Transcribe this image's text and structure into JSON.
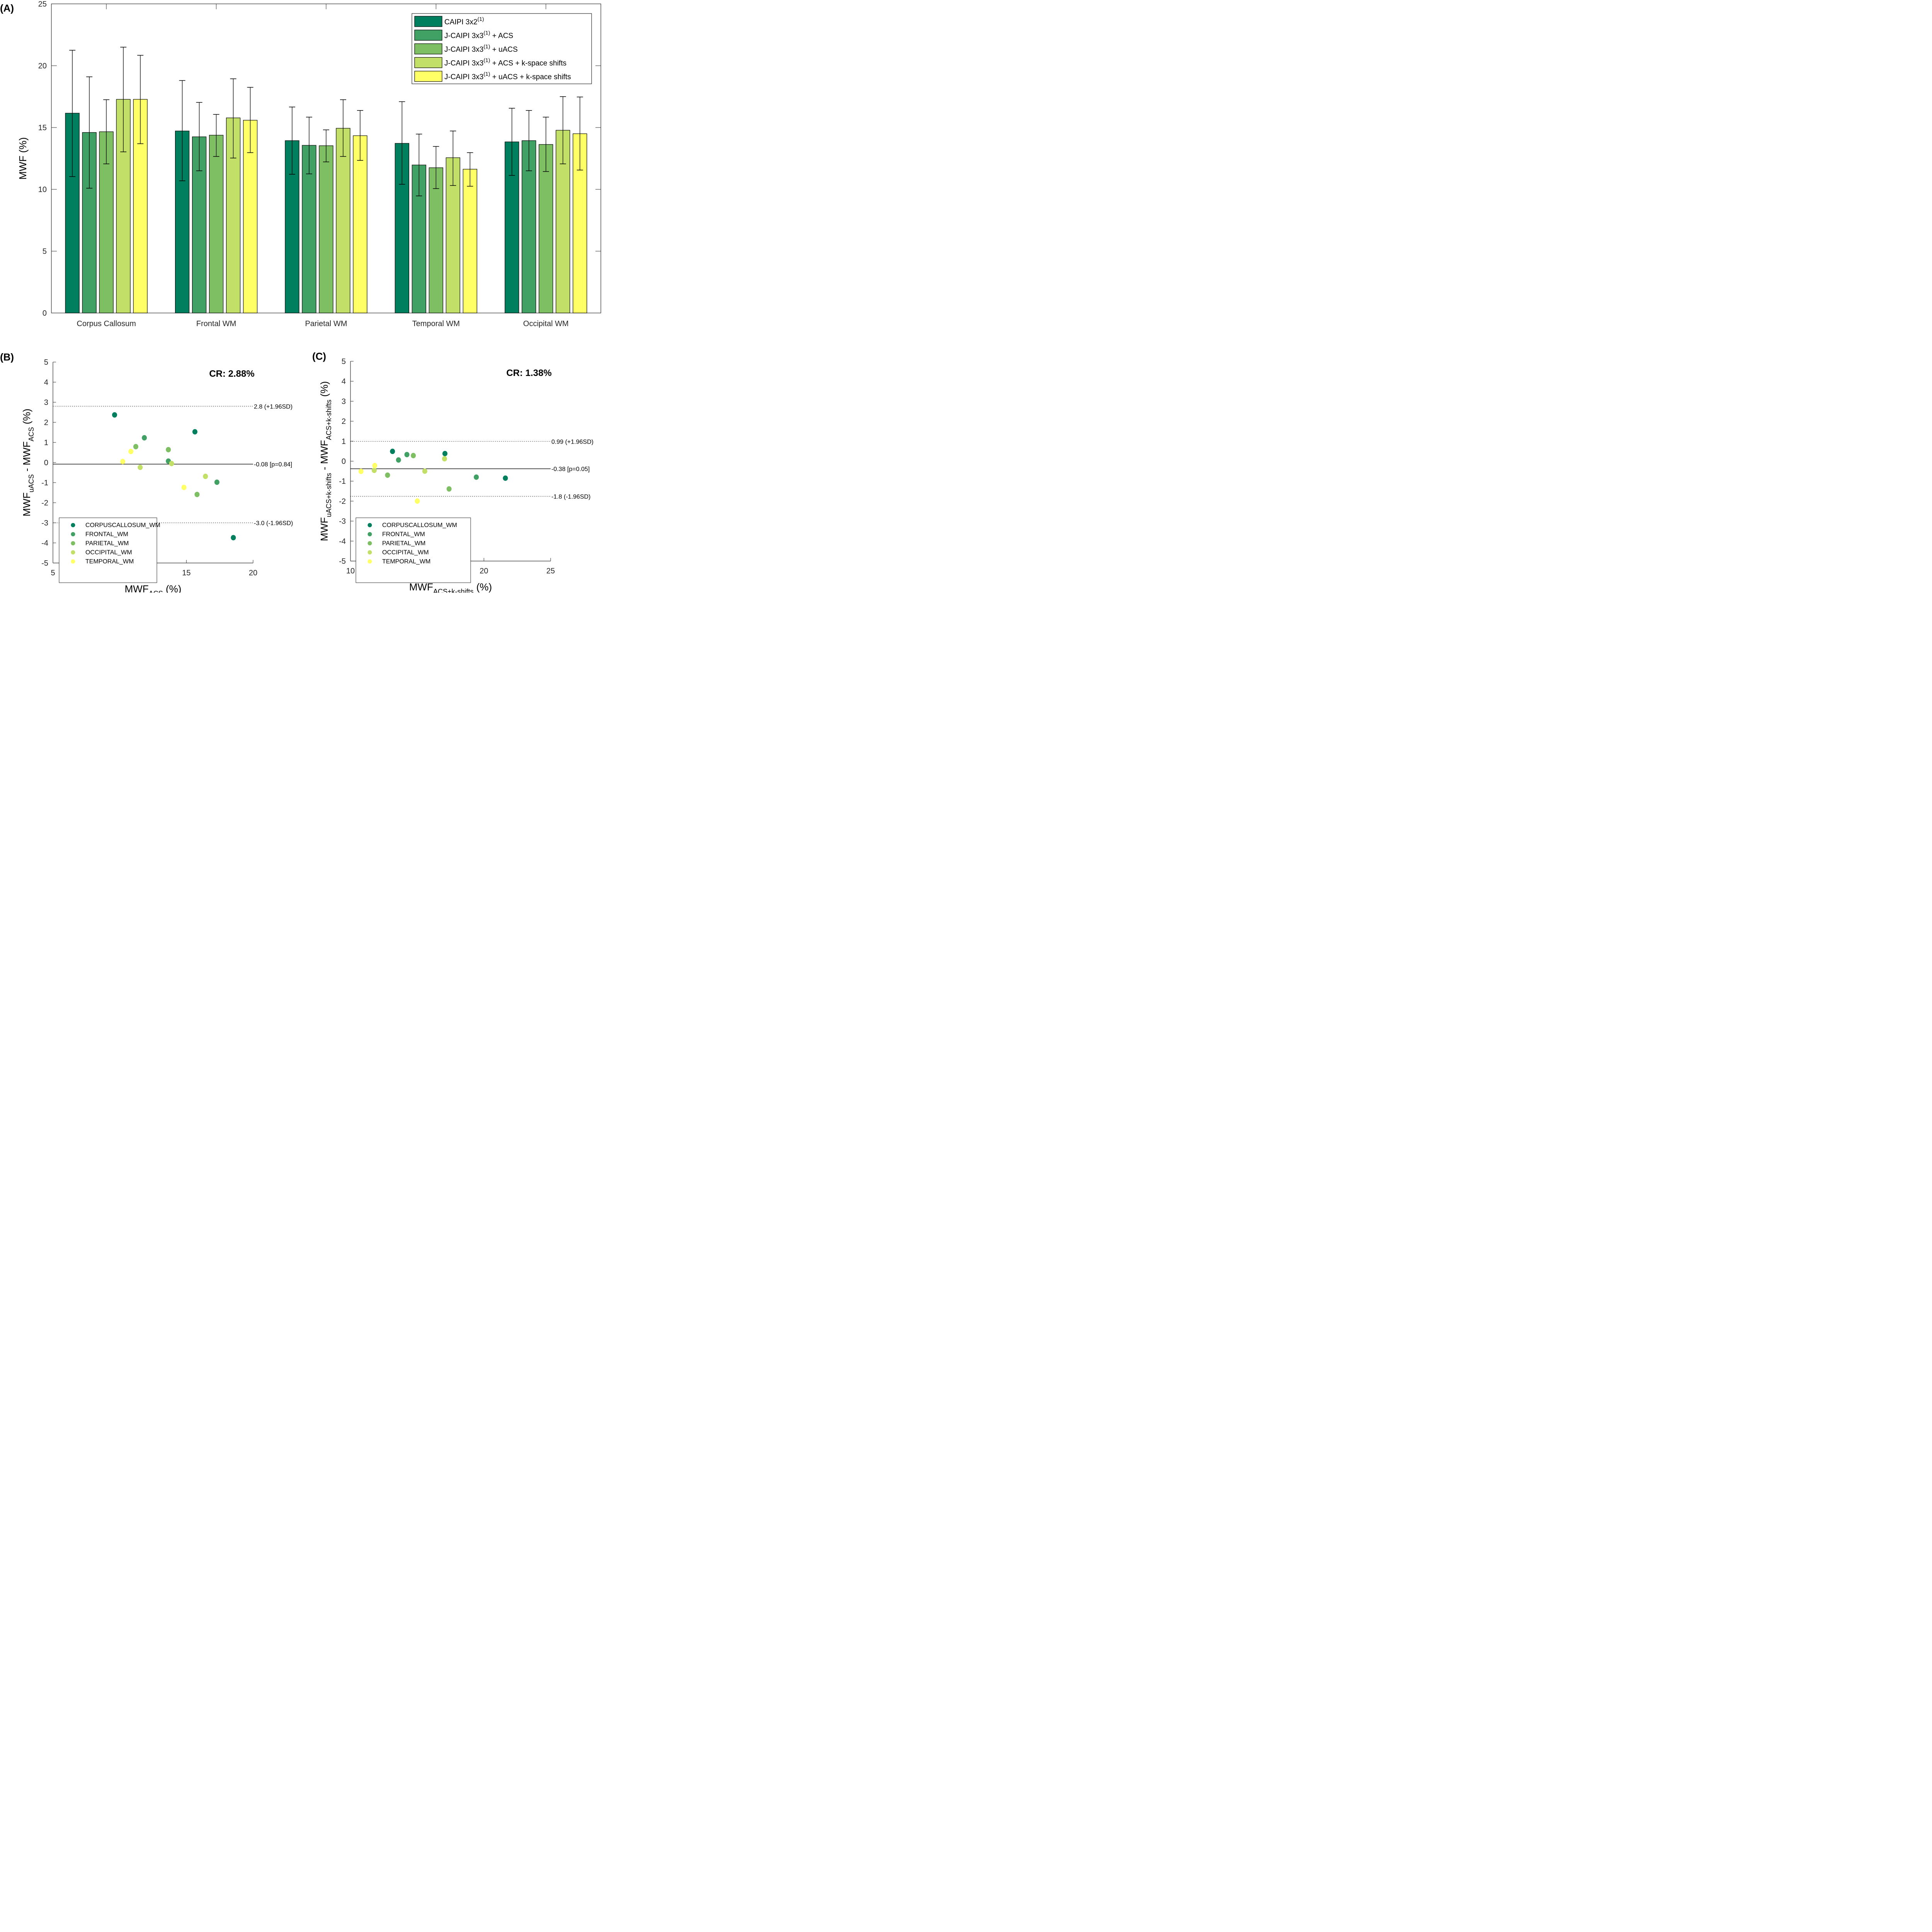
{
  "chart_data": [
    {
      "id": "A",
      "type": "bar",
      "panel_label": "(A)",
      "title": "",
      "xlabel": "",
      "ylabel": "MWF (%)",
      "ylim": [
        0,
        25
      ],
      "yticks": [
        0,
        5,
        10,
        15,
        20,
        25
      ],
      "legend_position": "top-right",
      "categories": [
        "Corpus Callosum",
        "Frontal WM",
        "Parietal WM",
        "Temporal WM",
        "Occipital WM"
      ],
      "series": [
        {
          "name": "CAIPI 3x2",
          "sup": "(1)",
          "suffix": "",
          "color": "#007f5f",
          "values": [
            16.16,
            14.72,
            13.94,
            13.72,
            13.84
          ],
          "err_upper": [
            21.25,
            18.8,
            16.66,
            17.09,
            16.56
          ],
          "err_lower": [
            11.03,
            10.69,
            11.22,
            10.41,
            11.13
          ]
        },
        {
          "name": "J-CAIPI 3x3",
          "sup": "(1)",
          "suffix": " + ACS",
          "color": "#41a064",
          "values": [
            14.6,
            14.25,
            13.56,
            11.97,
            13.94
          ],
          "err_upper": [
            19.1,
            17.03,
            15.84,
            14.47,
            16.38
          ],
          "err_lower": [
            10.09,
            11.5,
            11.25,
            9.47,
            11.5
          ]
        },
        {
          "name": "J-CAIPI 3x3",
          "sup": "(1)",
          "suffix": " + uACS",
          "color": "#7fbf63",
          "values": [
            14.66,
            14.38,
            13.53,
            11.75,
            13.63
          ],
          "err_upper": [
            17.25,
            16.06,
            14.81,
            13.47,
            15.84
          ],
          "err_lower": [
            12.06,
            12.66,
            12.22,
            10.06,
            11.44
          ]
        },
        {
          "name": "J-CAIPI 3x3",
          "sup": "(1)",
          "suffix": " + ACS + k-space shifts",
          "color": "#c2df67",
          "values": [
            17.28,
            15.78,
            14.94,
            12.56,
            14.78
          ],
          "err_upper": [
            21.5,
            18.94,
            17.25,
            14.72,
            17.5
          ],
          "err_lower": [
            13.03,
            12.53,
            12.66,
            10.31,
            12.06
          ]
        },
        {
          "name": "J-CAIPI 3x3",
          "sup": "(1)",
          "suffix": " + uACS + k-space shifts",
          "color": "#ffff66",
          "values": [
            17.28,
            15.59,
            14.34,
            11.63,
            14.5
          ],
          "err_upper": [
            20.84,
            18.25,
            16.38,
            12.97,
            17.47
          ],
          "err_lower": [
            13.69,
            12.97,
            12.34,
            10.25,
            11.56
          ]
        }
      ]
    },
    {
      "id": "B",
      "type": "scatter",
      "panel_label": "(B)",
      "annotation": "CR: 2.88%",
      "xlabel": {
        "main": "MWF",
        "sub": "ACS",
        "tail": " (%)"
      },
      "ylabel": {
        "a": "MWF",
        "a_sub": "uACS",
        "mid": " - MWF",
        "b_sub": "ACS",
        "tail": " (%)"
      },
      "xlim": [
        5,
        20
      ],
      "xticks": [
        5,
        10,
        15,
        20
      ],
      "ylim": [
        -5,
        5
      ],
      "yticks": [
        -5,
        -4,
        -3,
        -2,
        -1,
        0,
        1,
        2,
        3,
        4,
        5
      ],
      "legend_position": "bottom-left",
      "mean_line": {
        "value": -0.08,
        "label": "-0.08 [p=0.84]"
      },
      "upper_loa": {
        "value": 2.8,
        "label": "2.8 (+1.96SD)"
      },
      "lower_loa": {
        "value": -3.0,
        "label": "-3.0 (-1.96SD)"
      },
      "series": [
        {
          "name": "CORPUSCALLOSUM_WM",
          "color": "#007f5f",
          "points": [
            [
              9.62,
              2.37
            ],
            [
              15.64,
              1.53
            ],
            [
              18.52,
              -3.74
            ]
          ]
        },
        {
          "name": "FRONTAL_WM",
          "color": "#41a064",
          "points": [
            [
              11.85,
              1.23
            ],
            [
              13.65,
              0.07
            ],
            [
              17.29,
              -0.98
            ]
          ]
        },
        {
          "name": "PARIETAL_WM",
          "color": "#7fbf63",
          "points": [
            [
              11.21,
              0.79
            ],
            [
              13.65,
              0.64
            ],
            [
              15.8,
              -1.59
            ]
          ]
        },
        {
          "name": "OCCIPITAL_WM",
          "color": "#c2df67",
          "points": [
            [
              11.54,
              -0.24
            ],
            [
              13.89,
              -0.05
            ],
            [
              16.43,
              -0.69
            ]
          ]
        },
        {
          "name": "TEMPORAL_WM",
          "color": "#ffff66",
          "points": [
            [
              10.23,
              0.05
            ],
            [
              10.84,
              0.55
            ],
            [
              14.82,
              -1.24
            ]
          ]
        }
      ]
    },
    {
      "id": "C",
      "type": "scatter",
      "panel_label": "(C)",
      "annotation": "CR: 1.38%",
      "xlabel": {
        "main": "MWF",
        "sub": "ACS+k-shifts",
        "tail": " (%)"
      },
      "ylabel": {
        "a": "MWF",
        "a_sub": "uACS+k-shifts",
        "mid": " - MWF",
        "b_sub": "ACS+k-shifts",
        "tail": " (%)"
      },
      "xlim": [
        10,
        25
      ],
      "xticks": [
        10,
        15,
        20,
        25
      ],
      "ylim": [
        -5,
        5
      ],
      "yticks": [
        -5,
        -4,
        -3,
        -2,
        -1,
        0,
        1,
        2,
        3,
        4,
        5
      ],
      "legend_position": "bottom-left",
      "mean_line": {
        "value": -0.38,
        "label": "-0.38 [p=0.05]"
      },
      "upper_loa": {
        "value": 0.99,
        "label": "0.99 (+1.96SD)"
      },
      "lower_loa": {
        "value": -1.76,
        "label": "-1.8 (-1.96SD)"
      },
      "series": [
        {
          "name": "CORPUSCALLOSUM_WM",
          "color": "#007f5f",
          "points": [
            [
              13.15,
              0.49
            ],
            [
              17.08,
              0.38
            ],
            [
              21.61,
              -0.85
            ]
          ]
        },
        {
          "name": "FRONTAL_WM",
          "color": "#41a064",
          "points": [
            [
              13.6,
              0.06
            ],
            [
              14.23,
              0.33
            ],
            [
              19.43,
              -0.8
            ]
          ]
        },
        {
          "name": "PARIETAL_WM",
          "color": "#7fbf63",
          "points": [
            [
              12.78,
              -0.7
            ],
            [
              14.71,
              0.28
            ],
            [
              17.39,
              -1.39
            ]
          ]
        },
        {
          "name": "OCCIPITAL_WM",
          "color": "#c2df67",
          "points": [
            [
              11.78,
              -0.46
            ],
            [
              15.57,
              -0.5
            ],
            [
              17.05,
              0.12
            ]
          ]
        },
        {
          "name": "TEMPORAL_WM",
          "color": "#ffff66",
          "points": [
            [
              10.79,
              -0.51
            ],
            [
              11.82,
              -0.22
            ],
            [
              15.01,
              -2.0
            ]
          ]
        }
      ]
    }
  ]
}
